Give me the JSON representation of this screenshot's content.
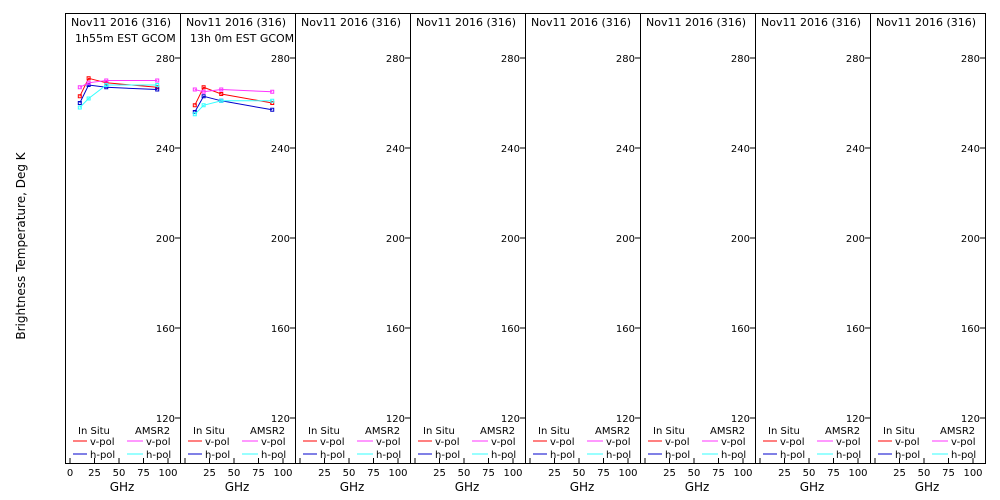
{
  "y_axis_label": "Brightness Temperature, Deg K",
  "colors": {
    "in_situ_v": "#ff0000",
    "in_situ_h": "#0000cc",
    "amsr2_v": "#ff33ff",
    "amsr2_h": "#33ffff",
    "axis": "#000000"
  },
  "chart_data": [
    {
      "type": "line",
      "title_line1": "Nov11 2016 (316)",
      "title_line2": "1h55m EST GCOM",
      "xlabel": "GHz",
      "xlim": [
        0,
        100
      ],
      "ylim": [
        100,
        300
      ],
      "x_ticks": [
        "0",
        "25",
        "50",
        "75",
        "100"
      ],
      "y_ticks": [
        "120",
        "160",
        "200",
        "240",
        "280"
      ],
      "legend": {
        "in_situ": "In Situ",
        "amsr2": "AMSR2",
        "v": "v-pol",
        "h": "h-pol"
      },
      "series": [
        {
          "key": "in_situ_v",
          "x": [
            10,
            19,
            37,
            89
          ],
          "y": [
            263,
            271,
            269,
            267
          ]
        },
        {
          "key": "in_situ_h",
          "x": [
            10,
            19,
            37,
            89
          ],
          "y": [
            260,
            268,
            267,
            266
          ]
        },
        {
          "key": "amsr2_v",
          "x": [
            10,
            19,
            37,
            89
          ],
          "y": [
            267,
            269,
            270,
            270
          ]
        },
        {
          "key": "amsr2_h",
          "x": [
            10,
            19,
            37,
            89
          ],
          "y": [
            258,
            262,
            268,
            268
          ]
        }
      ]
    },
    {
      "type": "line",
      "title_line1": "Nov11 2016 (316)",
      "title_line2": "13h 0m EST GCOM",
      "xlabel": "GHz",
      "xlim": [
        0,
        100
      ],
      "ylim": [
        100,
        300
      ],
      "x_ticks": [
        "0",
        "25",
        "50",
        "75",
        "100"
      ],
      "y_ticks": [
        "120",
        "160",
        "200",
        "240",
        "280"
      ],
      "legend": {
        "in_situ": "In Situ",
        "amsr2": "AMSR2",
        "v": "v-pol",
        "h": "h-pol"
      },
      "series": [
        {
          "key": "in_situ_v",
          "x": [
            10,
            19,
            37,
            89
          ],
          "y": [
            259,
            267,
            264,
            260
          ]
        },
        {
          "key": "in_situ_h",
          "x": [
            10,
            19,
            37,
            89
          ],
          "y": [
            256,
            263,
            261,
            257
          ]
        },
        {
          "key": "amsr2_v",
          "x": [
            10,
            19,
            37,
            89
          ],
          "y": [
            266,
            265,
            266,
            265
          ]
        },
        {
          "key": "amsr2_h",
          "x": [
            10,
            19,
            37,
            89
          ],
          "y": [
            255,
            259,
            261,
            261
          ]
        }
      ]
    },
    {
      "type": "line",
      "title_line1": "Nov11 2016 (316)",
      "title_line2": "",
      "xlabel": "GHz",
      "xlim": [
        0,
        100
      ],
      "ylim": [
        100,
        300
      ],
      "x_ticks": [
        "0",
        "25",
        "50",
        "75",
        "100"
      ],
      "y_ticks": [
        "120",
        "160",
        "200",
        "240",
        "280"
      ],
      "legend": {
        "in_situ": "In Situ",
        "amsr2": "AMSR2",
        "v": "v-pol",
        "h": "h-pol"
      },
      "series": []
    },
    {
      "type": "line",
      "title_line1": "Nov11 2016 (316)",
      "title_line2": "",
      "xlabel": "GHz",
      "xlim": [
        0,
        100
      ],
      "ylim": [
        100,
        300
      ],
      "x_ticks": [
        "0",
        "25",
        "50",
        "75",
        "100"
      ],
      "y_ticks": [
        "120",
        "160",
        "200",
        "240",
        "280"
      ],
      "legend": {
        "in_situ": "In Situ",
        "amsr2": "AMSR2",
        "v": "v-pol",
        "h": "h-pol"
      },
      "series": []
    },
    {
      "type": "line",
      "title_line1": "Nov11 2016 (316)",
      "title_line2": "",
      "xlabel": "GHz",
      "xlim": [
        0,
        100
      ],
      "ylim": [
        100,
        300
      ],
      "x_ticks": [
        "0",
        "25",
        "50",
        "75",
        "100"
      ],
      "y_ticks": [
        "120",
        "160",
        "200",
        "240",
        "280"
      ],
      "legend": {
        "in_situ": "In Situ",
        "amsr2": "AMSR2",
        "v": "v-pol",
        "h": "h-pol"
      },
      "series": []
    },
    {
      "type": "line",
      "title_line1": "Nov11 2016 (316)",
      "title_line2": "",
      "xlabel": "GHz",
      "xlim": [
        0,
        100
      ],
      "ylim": [
        100,
        300
      ],
      "x_ticks": [
        "0",
        "25",
        "50",
        "75",
        "100"
      ],
      "y_ticks": [
        "120",
        "160",
        "200",
        "240",
        "280"
      ],
      "legend": {
        "in_situ": "In Situ",
        "amsr2": "AMSR2",
        "v": "v-pol",
        "h": "h-pol"
      },
      "series": []
    },
    {
      "type": "line",
      "title_line1": "Nov11 2016 (316)",
      "title_line2": "",
      "xlabel": "GHz",
      "xlim": [
        0,
        100
      ],
      "ylim": [
        100,
        300
      ],
      "x_ticks": [
        "0",
        "25",
        "50",
        "75",
        "100"
      ],
      "y_ticks": [
        "120",
        "160",
        "200",
        "240",
        "280"
      ],
      "legend": {
        "in_situ": "In Situ",
        "amsr2": "AMSR2",
        "v": "v-pol",
        "h": "h-pol"
      },
      "series": []
    },
    {
      "type": "line",
      "title_line1": "Nov11 2016 (316)",
      "title_line2": "",
      "xlabel": "GHz",
      "xlim": [
        0,
        100
      ],
      "ylim": [
        100,
        300
      ],
      "x_ticks": [
        "0",
        "25",
        "50",
        "75",
        "100"
      ],
      "y_ticks": [
        "120",
        "160",
        "200",
        "240",
        "280"
      ],
      "legend": {
        "in_situ": "In Situ",
        "amsr2": "AMSR2",
        "v": "v-pol",
        "h": "h-pol"
      },
      "series": []
    }
  ]
}
